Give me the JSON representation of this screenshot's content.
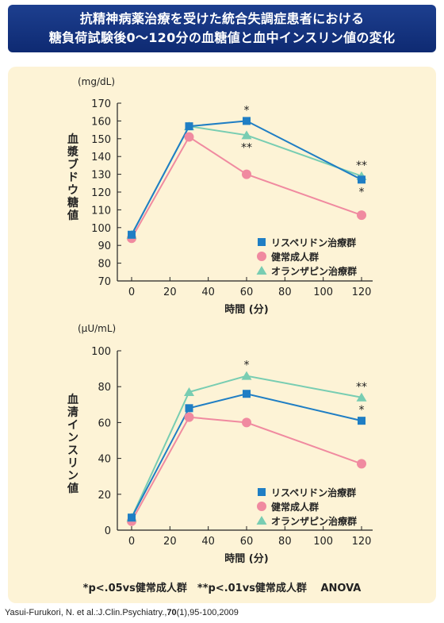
{
  "title_lines": [
    "抗精神病薬治療を受けた統合失調症患者における",
    "糖負荷試験後0〜120分の血糖値と血中インスリン値の変化"
  ],
  "chart_data": [
    {
      "type": "line",
      "title": "",
      "ylabel": "血漿ブドウ糖値",
      "unit": "(mg/dL)",
      "xlabel": "時間 (分)",
      "x": [
        0,
        30,
        60,
        120
      ],
      "xlim": [
        0,
        120
      ],
      "ylim": [
        70,
        170
      ],
      "x_ticks": [
        0,
        20,
        40,
        60,
        80,
        100,
        120
      ],
      "y_ticks": [
        70,
        80,
        90,
        100,
        110,
        120,
        130,
        140,
        150,
        160,
        170
      ],
      "legend_position": "bottom-right",
      "series": [
        {
          "name": "リスペリドン治療群",
          "values": [
            96,
            157,
            160,
            127
          ],
          "color": "#1f7ec4",
          "marker": "square"
        },
        {
          "name": "健常成人群",
          "values": [
            94,
            151,
            130,
            107
          ],
          "color": "#f08aa0",
          "marker": "circle"
        },
        {
          "name": "オランザピン治療群",
          "values": [
            96,
            157,
            152,
            129
          ],
          "color": "#78cdb2",
          "marker": "triangle"
        }
      ],
      "annotations": [
        {
          "x": 60,
          "y": 160,
          "text": "*",
          "position": "above"
        },
        {
          "x": 60,
          "y": 152,
          "text": "**",
          "position": "below"
        },
        {
          "x": 120,
          "y": 129,
          "text": "**",
          "position": "above"
        },
        {
          "x": 120,
          "y": 127,
          "text": "*",
          "position": "below"
        }
      ]
    },
    {
      "type": "line",
      "title": "",
      "ylabel": "血清インスリン値",
      "unit": "(μU/mL)",
      "xlabel": "時間 (分)",
      "x": [
        0,
        30,
        60,
        120
      ],
      "xlim": [
        0,
        120
      ],
      "ylim": [
        0,
        100
      ],
      "x_ticks": [
        0,
        20,
        40,
        60,
        80,
        100,
        120
      ],
      "y_ticks": [
        0,
        20,
        40,
        60,
        80,
        100
      ],
      "legend_position": "bottom-right",
      "series": [
        {
          "name": "リスペリドン治療群",
          "values": [
            7,
            68,
            76,
            61
          ],
          "color": "#1f7ec4",
          "marker": "square"
        },
        {
          "name": "健常成人群",
          "values": [
            5,
            63,
            60,
            37
          ],
          "color": "#f08aa0",
          "marker": "circle"
        },
        {
          "name": "オランザピン治療群",
          "values": [
            7,
            77,
            86,
            74
          ],
          "color": "#78cdb2",
          "marker": "triangle"
        }
      ],
      "annotations": [
        {
          "x": 60,
          "y": 86,
          "text": "*",
          "position": "above"
        },
        {
          "x": 120,
          "y": 74,
          "text": "**",
          "position": "above"
        },
        {
          "x": 120,
          "y": 61,
          "text": "*",
          "position": "above"
        }
      ]
    }
  ],
  "footnote": "*p<.05vs健常成人群　**p<.01vs健常成人群　 ANOVA",
  "citation": {
    "prefix": "Yasui-Furukori, N. et al.:J.Clin.Psychiatry.,",
    "volume": "70",
    "suffix": "(1),95-100,2009"
  }
}
